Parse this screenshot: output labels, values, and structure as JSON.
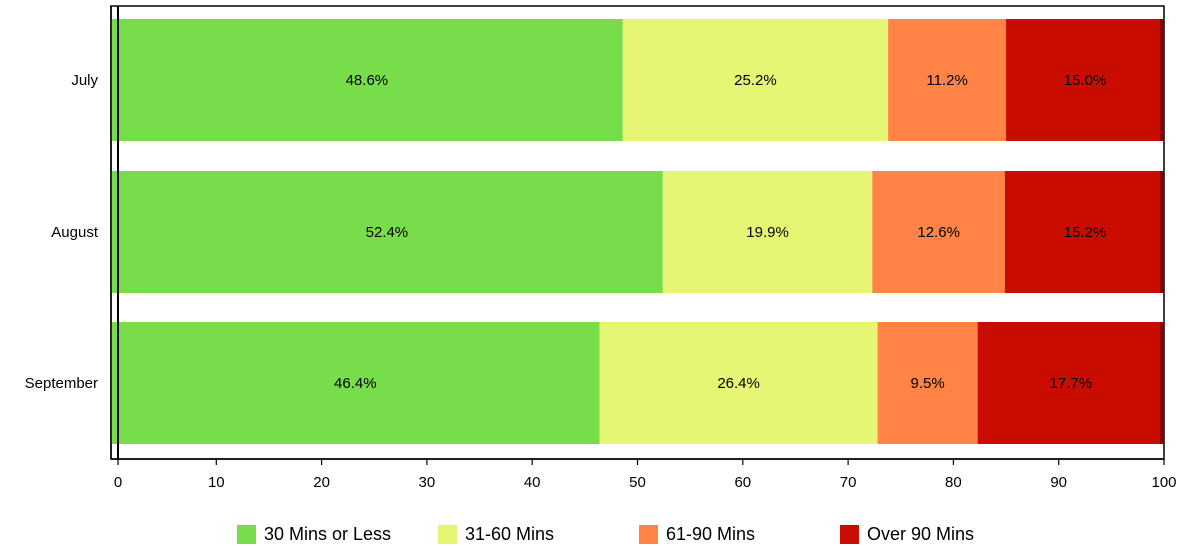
{
  "chart_data": {
    "type": "bar",
    "orientation": "horizontal",
    "stacked": true,
    "categories": [
      "July",
      "August",
      "September"
    ],
    "series": [
      {
        "name": "30 Mins or Less",
        "color": "#77DD4A",
        "values": [
          48.6,
          52.4,
          46.4
        ],
        "labels": [
          "48.6%",
          "52.4%",
          "46.4%"
        ]
      },
      {
        "name": "31-60 Mins",
        "color": "#E6F574",
        "values": [
          25.2,
          19.9,
          26.4
        ],
        "labels": [
          "25.2%",
          "19.9%",
          "26.4%"
        ]
      },
      {
        "name": "61-90 Mins",
        "color": "#FF8445",
        "values": [
          11.2,
          12.6,
          9.5
        ],
        "labels": [
          "11.2%",
          "12.6%",
          "9.5%"
        ]
      },
      {
        "name": "Over 90 Mins",
        "color": "#C80D00",
        "values": [
          15.0,
          15.2,
          17.7
        ],
        "labels": [
          "15.0%",
          "15.2%",
          "17.7%"
        ]
      }
    ],
    "xlim": [
      0,
      100
    ],
    "xticks": [
      0,
      10,
      20,
      30,
      40,
      50,
      60,
      70,
      80,
      90,
      100
    ],
    "grid": false,
    "legend": "bottom"
  }
}
